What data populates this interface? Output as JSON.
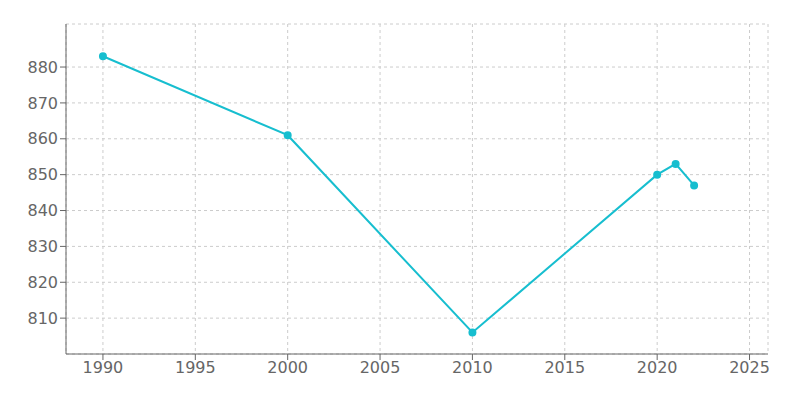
{
  "chart_data": {
    "type": "line",
    "x": [
      1990,
      2000,
      2010,
      2020,
      2021,
      2022
    ],
    "values": [
      883,
      861,
      806,
      850,
      853,
      847
    ],
    "color": "#17becf",
    "xlim": [
      1988,
      2026
    ],
    "ylim": [
      800,
      892
    ],
    "xticks": [
      1990,
      1995,
      2000,
      2005,
      2010,
      2015,
      2020,
      2025
    ],
    "yticks": [
      810,
      820,
      830,
      840,
      850,
      860,
      870,
      880
    ],
    "grid": true,
    "marker": "circle"
  }
}
